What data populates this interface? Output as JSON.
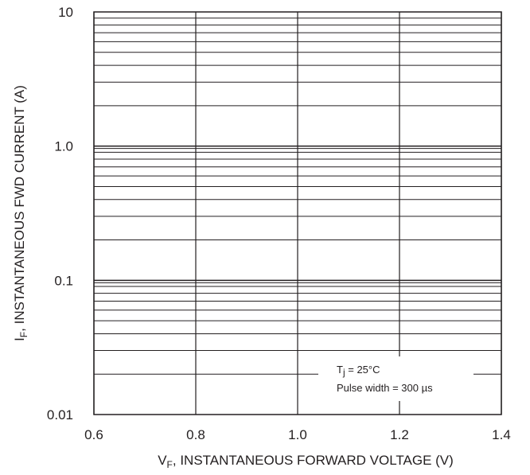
{
  "chart_data": {
    "type": "line",
    "xlabel_prefix": "V",
    "xlabel_sub": "F",
    "xlabel_rest": ", INSTANTANEOUS FORWARD VOLTAGE (V)",
    "ylabel_prefix": "I",
    "ylabel_sub": "F",
    "ylabel_rest": ", INSTANTANEOUS FWD CURRENT (A)",
    "xlim": [
      0.6,
      1.4
    ],
    "ylim": [
      0.01,
      10
    ],
    "yscale": "log",
    "grid": true,
    "x_ticks": [
      0.6,
      0.8,
      1.0,
      1.2,
      1.4
    ],
    "x_tick_labels": [
      "0.6",
      "0.8",
      "1.0",
      "1.2",
      "1.4"
    ],
    "y_ticks": [
      0.01,
      0.1,
      1.0,
      10
    ],
    "y_tick_labels": [
      "0.01",
      "0.1",
      "1.0",
      "10"
    ],
    "series": [],
    "annotation": {
      "line1_prefix": "T",
      "line1_sub": "j",
      "line1_rest": " = 25°C",
      "line2": "Pulse width = 300 µs"
    },
    "colors": {
      "grid": "#231f20",
      "text": "#231f20",
      "background": "#ffffff"
    }
  }
}
